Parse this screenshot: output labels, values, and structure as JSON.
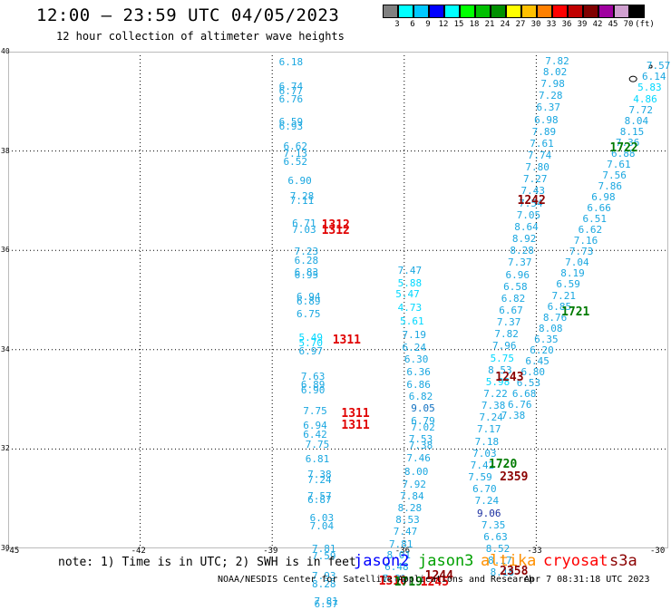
{
  "header": {
    "title": "12:00 – 23:59 UTC 04/05/2023",
    "subtitle": "12 hour collection of altimeter wave heights"
  },
  "colorbar": {
    "unit": "(ft)",
    "labels": [
      "3",
      "6",
      "9",
      "12",
      "15",
      "18",
      "21",
      "24",
      "27",
      "30",
      "33",
      "36",
      "39",
      "42",
      "45",
      "70"
    ],
    "colors": [
      "#808080",
      "#00ffff",
      "#00c8ff",
      "#0000ff",
      "#00ffff",
      "#00ff00",
      "#00c000",
      "#009000",
      "#ffff00",
      "#ffc000",
      "#ff8000",
      "#ff0000",
      "#c00000",
      "#800000",
      "#a000a0",
      "#d0a0d0",
      "#000000"
    ]
  },
  "axes": {
    "x_ticks": [
      "-45",
      "-42",
      "-39",
      "-36",
      "-33",
      "-30"
    ],
    "y_ticks": [
      "40",
      "38",
      "36",
      "34",
      "32",
      "30"
    ]
  },
  "chart_data": {
    "type": "scatter",
    "title": "12:00 – 23:59 UTC 04/05/2023",
    "subtitle": "12 hour collection of altimeter wave heights",
    "xlim": [
      -45,
      -30
    ],
    "ylim": [
      30,
      40
    ],
    "grid": true,
    "wave_heights": [
      {
        "lon": -38.6,
        "lat": 39.8,
        "v": "6.18",
        "c": "c1"
      },
      {
        "lon": -38.6,
        "lat": 39.3,
        "v": "6.74",
        "c": "c1"
      },
      {
        "lon": -38.6,
        "lat": 39.22,
        "v": "6.77",
        "c": "c1"
      },
      {
        "lon": -38.6,
        "lat": 39.05,
        "v": "6.76",
        "c": "c1"
      },
      {
        "lon": -38.6,
        "lat": 38.6,
        "v": "6.59",
        "c": "c1"
      },
      {
        "lon": -38.6,
        "lat": 38.5,
        "v": "6.93",
        "c": "c1"
      },
      {
        "lon": -38.5,
        "lat": 38.1,
        "v": "6.62",
        "c": "c1"
      },
      {
        "lon": -38.5,
        "lat": 37.95,
        "v": "7.13",
        "c": "c1"
      },
      {
        "lon": -38.5,
        "lat": 37.8,
        "v": "6.52",
        "c": "c1"
      },
      {
        "lon": -38.4,
        "lat": 37.4,
        "v": "6.90",
        "c": "c1"
      },
      {
        "lon": -38.35,
        "lat": 37.1,
        "v": "7.28",
        "c": "c1"
      },
      {
        "lon": -38.35,
        "lat": 37.0,
        "v": "7.11",
        "c": "c1"
      },
      {
        "lon": -38.3,
        "lat": 36.55,
        "v": "6.71",
        "c": "c1"
      },
      {
        "lon": -38.3,
        "lat": 36.42,
        "v": "7.03",
        "c": "c1"
      },
      {
        "lon": -38.25,
        "lat": 35.98,
        "v": "7.23",
        "c": "c1"
      },
      {
        "lon": -38.25,
        "lat": 35.8,
        "v": "6.28",
        "c": "c1"
      },
      {
        "lon": -38.25,
        "lat": 35.57,
        "v": "6.83",
        "c": "c1"
      },
      {
        "lon": -38.25,
        "lat": 35.52,
        "v": "6.95",
        "c": "c1"
      },
      {
        "lon": -38.2,
        "lat": 35.07,
        "v": "6.94",
        "c": "c1"
      },
      {
        "lon": -38.2,
        "lat": 34.98,
        "v": "6.89",
        "c": "c1"
      },
      {
        "lon": -38.2,
        "lat": 34.73,
        "v": "6.75",
        "c": "c1"
      },
      {
        "lon": -38.15,
        "lat": 34.25,
        "v": "5.49",
        "c": "c2"
      },
      {
        "lon": -38.15,
        "lat": 34.15,
        "v": "5.70",
        "c": "c2"
      },
      {
        "lon": -38.15,
        "lat": 33.98,
        "v": "6.97",
        "c": "c1"
      },
      {
        "lon": -38.1,
        "lat": 33.47,
        "v": "7.63",
        "c": "c1"
      },
      {
        "lon": -38.1,
        "lat": 33.3,
        "v": "6.89",
        "c": "c1"
      },
      {
        "lon": -38.1,
        "lat": 33.2,
        "v": "6.90",
        "c": "c1"
      },
      {
        "lon": -38.05,
        "lat": 32.78,
        "v": "7.75",
        "c": "c1"
      },
      {
        "lon": -38.05,
        "lat": 32.48,
        "v": "6.94",
        "c": "c1"
      },
      {
        "lon": -38.05,
        "lat": 32.3,
        "v": "6.42",
        "c": "c1"
      },
      {
        "lon": -38.0,
        "lat": 32.1,
        "v": "7.75",
        "c": "c1"
      },
      {
        "lon": -38.0,
        "lat": 31.8,
        "v": "6.81",
        "c": "c1"
      },
      {
        "lon": -37.95,
        "lat": 31.5,
        "v": "7.38",
        "c": "c1"
      },
      {
        "lon": -37.95,
        "lat": 31.38,
        "v": "7.24",
        "c": "c1"
      },
      {
        "lon": -37.95,
        "lat": 31.05,
        "v": "7.57",
        "c": "c1"
      },
      {
        "lon": -37.95,
        "lat": 30.98,
        "v": "6.87",
        "c": "c1"
      },
      {
        "lon": -37.9,
        "lat": 30.62,
        "v": "6.03",
        "c": "c1"
      },
      {
        "lon": -37.9,
        "lat": 30.45,
        "v": "7.04",
        "c": "c1"
      },
      {
        "lon": -37.85,
        "lat": 30.0,
        "v": "7.81",
        "c": "c1"
      },
      {
        "lon": -37.85,
        "lat": 29.85,
        "v": "7.59",
        "c": "c1"
      },
      {
        "lon": -37.85,
        "lat": 29.45,
        "v": "7.93",
        "c": "c1"
      },
      {
        "lon": -37.85,
        "lat": 29.28,
        "v": "8.28",
        "c": "c1"
      },
      {
        "lon": -37.8,
        "lat": 28.95,
        "v": "7.81",
        "c": "c1"
      },
      {
        "lon": -37.8,
        "lat": 28.88,
        "v": "6.57",
        "c": "c1"
      },
      {
        "lon": -35.9,
        "lat": 35.6,
        "v": "7.47",
        "c": "c1"
      },
      {
        "lon": -35.9,
        "lat": 35.35,
        "v": "5.88",
        "c": "c2"
      },
      {
        "lon": -35.95,
        "lat": 35.12,
        "v": "5.47",
        "c": "c2"
      },
      {
        "lon": -35.9,
        "lat": 34.85,
        "v": "4.73",
        "c": "c2"
      },
      {
        "lon": -35.85,
        "lat": 34.58,
        "v": "5.61",
        "c": "c2"
      },
      {
        "lon": -35.8,
        "lat": 34.3,
        "v": "7.19",
        "c": "c1"
      },
      {
        "lon": -35.8,
        "lat": 34.05,
        "v": "6.24",
        "c": "c1"
      },
      {
        "lon": -35.75,
        "lat": 33.82,
        "v": "6.30",
        "c": "c1"
      },
      {
        "lon": -35.7,
        "lat": 33.55,
        "v": "6.36",
        "c": "c1"
      },
      {
        "lon": -35.7,
        "lat": 33.3,
        "v": "6.86",
        "c": "c1"
      },
      {
        "lon": -35.65,
        "lat": 33.06,
        "v": "6.82",
        "c": "c1"
      },
      {
        "lon": -35.6,
        "lat": 32.82,
        "v": "9.05",
        "c": "c3"
      },
      {
        "lon": -35.6,
        "lat": 32.58,
        "v": "6.79",
        "c": "c1"
      },
      {
        "lon": -35.6,
        "lat": 32.44,
        "v": "7.02",
        "c": "c1"
      },
      {
        "lon": -35.65,
        "lat": 32.2,
        "v": "7.53",
        "c": "c1"
      },
      {
        "lon": -35.65,
        "lat": 32.08,
        "v": "7.38",
        "c": "c1"
      },
      {
        "lon": -35.7,
        "lat": 31.82,
        "v": "7.46",
        "c": "c1"
      },
      {
        "lon": -35.75,
        "lat": 31.55,
        "v": "8.00",
        "c": "c1"
      },
      {
        "lon": -35.8,
        "lat": 31.3,
        "v": "7.92",
        "c": "c1"
      },
      {
        "lon": -35.85,
        "lat": 31.06,
        "v": "7.84",
        "c": "c1"
      },
      {
        "lon": -35.9,
        "lat": 30.82,
        "v": "8.28",
        "c": "c1"
      },
      {
        "lon": -35.95,
        "lat": 30.58,
        "v": "8.53",
        "c": "c1"
      },
      {
        "lon": -36.0,
        "lat": 30.34,
        "v": "7.47",
        "c": "c1"
      },
      {
        "lon": -36.1,
        "lat": 30.1,
        "v": "7.81",
        "c": "c1"
      },
      {
        "lon": -36.15,
        "lat": 29.88,
        "v": "8.01",
        "c": "c1"
      },
      {
        "lon": -36.2,
        "lat": 29.64,
        "v": "6.48",
        "c": "c1"
      },
      {
        "lon": -36.25,
        "lat": 29.4,
        "v": "7.81",
        "c": "c1"
      },
      {
        "lon": -32.55,
        "lat": 39.82,
        "v": "7.82",
        "c": "c1"
      },
      {
        "lon": -32.6,
        "lat": 39.6,
        "v": "8.02",
        "c": "c1"
      },
      {
        "lon": -32.65,
        "lat": 39.36,
        "v": "7.98",
        "c": "c1"
      },
      {
        "lon": -32.7,
        "lat": 39.12,
        "v": "7.28",
        "c": "c1"
      },
      {
        "lon": -32.75,
        "lat": 38.88,
        "v": "6.37",
        "c": "c1"
      },
      {
        "lon": -32.8,
        "lat": 38.64,
        "v": "6.98",
        "c": "c1"
      },
      {
        "lon": -32.85,
        "lat": 38.4,
        "v": "7.89",
        "c": "c1"
      },
      {
        "lon": -32.9,
        "lat": 38.16,
        "v": "7.61",
        "c": "c1"
      },
      {
        "lon": -32.95,
        "lat": 37.92,
        "v": "7.74",
        "c": "c1"
      },
      {
        "lon": -33.0,
        "lat": 37.68,
        "v": "7.80",
        "c": "c1"
      },
      {
        "lon": -33.05,
        "lat": 37.44,
        "v": "7.27",
        "c": "c1"
      },
      {
        "lon": -33.1,
        "lat": 37.2,
        "v": "7.43",
        "c": "c1"
      },
      {
        "lon": -33.15,
        "lat": 36.96,
        "v": "7.54",
        "c": "c1"
      },
      {
        "lon": -33.2,
        "lat": 36.72,
        "v": "7.05",
        "c": "c1"
      },
      {
        "lon": -33.25,
        "lat": 36.48,
        "v": "8.64",
        "c": "c1"
      },
      {
        "lon": -33.3,
        "lat": 36.24,
        "v": "8.92",
        "c": "c1"
      },
      {
        "lon": -33.35,
        "lat": 36.0,
        "v": "8.28",
        "c": "c1"
      },
      {
        "lon": -33.4,
        "lat": 35.76,
        "v": "7.37",
        "c": "c1"
      },
      {
        "lon": -33.45,
        "lat": 35.52,
        "v": "6.96",
        "c": "c1"
      },
      {
        "lon": -33.5,
        "lat": 35.28,
        "v": "6.58",
        "c": "c1"
      },
      {
        "lon": -33.55,
        "lat": 35.04,
        "v": "6.82",
        "c": "c1"
      },
      {
        "lon": -33.6,
        "lat": 34.8,
        "v": "6.67",
        "c": "c1"
      },
      {
        "lon": -33.65,
        "lat": 34.56,
        "v": "7.37",
        "c": "c1"
      },
      {
        "lon": -33.7,
        "lat": 34.32,
        "v": "7.82",
        "c": "c1"
      },
      {
        "lon": -33.75,
        "lat": 34.08,
        "v": "7.96",
        "c": "c1"
      },
      {
        "lon": -33.8,
        "lat": 33.84,
        "v": "5.75",
        "c": "c2"
      },
      {
        "lon": -33.85,
        "lat": 33.6,
        "v": "8.53",
        "c": "c1"
      },
      {
        "lon": -33.9,
        "lat": 33.36,
        "v": "5.98",
        "c": "c2"
      },
      {
        "lon": -33.95,
        "lat": 33.12,
        "v": "7.22",
        "c": "c1"
      },
      {
        "lon": -34.0,
        "lat": 32.88,
        "v": "7.38",
        "c": "c1"
      },
      {
        "lon": -34.05,
        "lat": 32.64,
        "v": "7.24",
        "c": "c1"
      },
      {
        "lon": -34.1,
        "lat": 32.4,
        "v": "7.17",
        "c": "c1"
      },
      {
        "lon": -34.15,
        "lat": 32.16,
        "v": "7.18",
        "c": "c1"
      },
      {
        "lon": -34.2,
        "lat": 31.92,
        "v": "7.03",
        "c": "c1"
      },
      {
        "lon": -34.25,
        "lat": 31.68,
        "v": "7.42",
        "c": "c1"
      },
      {
        "lon": -34.3,
        "lat": 31.44,
        "v": "7.59",
        "c": "c1"
      },
      {
        "lon": -34.2,
        "lat": 31.2,
        "v": "6.70",
        "c": "c1"
      },
      {
        "lon": -34.15,
        "lat": 30.96,
        "v": "7.24",
        "c": "c1"
      },
      {
        "lon": -34.1,
        "lat": 30.72,
        "v": "9.06",
        "c": "dk"
      },
      {
        "lon": -34.0,
        "lat": 30.48,
        "v": "7.35",
        "c": "c1"
      },
      {
        "lon": -33.95,
        "lat": 30.24,
        "v": "6.63",
        "c": "c1"
      },
      {
        "lon": -33.9,
        "lat": 30.0,
        "v": "8.52",
        "c": "c1"
      },
      {
        "lon": -33.85,
        "lat": 29.76,
        "v": "8.17",
        "c": "c1"
      },
      {
        "lon": -33.8,
        "lat": 29.52,
        "v": "8.18",
        "c": "c1"
      },
      {
        "lon": -30.25,
        "lat": 39.72,
        "v": "7.57",
        "c": "c1"
      },
      {
        "lon": -30.35,
        "lat": 39.5,
        "v": "6.14",
        "c": "c1"
      },
      {
        "lon": -30.45,
        "lat": 39.28,
        "v": "5.83",
        "c": "c2"
      },
      {
        "lon": -30.55,
        "lat": 39.06,
        "v": "4.86",
        "c": "c2"
      },
      {
        "lon": -30.65,
        "lat": 38.84,
        "v": "7.72",
        "c": "c1"
      },
      {
        "lon": -30.75,
        "lat": 38.62,
        "v": "8.04",
        "c": "c1"
      },
      {
        "lon": -30.85,
        "lat": 38.4,
        "v": "8.15",
        "c": "c1"
      },
      {
        "lon": -30.95,
        "lat": 38.18,
        "v": "7.36",
        "c": "c1"
      },
      {
        "lon": -31.05,
        "lat": 37.96,
        "v": "6.88",
        "c": "c1"
      },
      {
        "lon": -31.15,
        "lat": 37.74,
        "v": "7.61",
        "c": "c1"
      },
      {
        "lon": -31.25,
        "lat": 37.52,
        "v": "7.56",
        "c": "c1"
      },
      {
        "lon": -31.35,
        "lat": 37.3,
        "v": "7.86",
        "c": "c1"
      },
      {
        "lon": -31.5,
        "lat": 37.08,
        "v": "6.98",
        "c": "c1"
      },
      {
        "lon": -31.6,
        "lat": 36.86,
        "v": "6.66",
        "c": "c1"
      },
      {
        "lon": -31.7,
        "lat": 36.64,
        "v": "6.51",
        "c": "c1"
      },
      {
        "lon": -31.8,
        "lat": 36.42,
        "v": "6.62",
        "c": "c1"
      },
      {
        "lon": -31.9,
        "lat": 36.2,
        "v": "7.16",
        "c": "c1"
      },
      {
        "lon": -32.0,
        "lat": 35.98,
        "v": "7.73",
        "c": "c1"
      },
      {
        "lon": -32.1,
        "lat": 35.76,
        "v": "7.04",
        "c": "c1"
      },
      {
        "lon": -32.2,
        "lat": 35.54,
        "v": "8.19",
        "c": "c1"
      },
      {
        "lon": -32.3,
        "lat": 35.32,
        "v": "6.59",
        "c": "c1"
      },
      {
        "lon": -32.4,
        "lat": 35.1,
        "v": "7.21",
        "c": "c1"
      },
      {
        "lon": -32.5,
        "lat": 34.88,
        "v": "6.85",
        "c": "c1"
      },
      {
        "lon": -32.6,
        "lat": 34.66,
        "v": "8.76",
        "c": "c1"
      },
      {
        "lon": -32.7,
        "lat": 34.44,
        "v": "8.08",
        "c": "c1"
      },
      {
        "lon": -32.8,
        "lat": 34.22,
        "v": "6.35",
        "c": "c1"
      },
      {
        "lon": -32.9,
        "lat": 34.0,
        "v": "6.20",
        "c": "c1"
      },
      {
        "lon": -33.0,
        "lat": 33.78,
        "v": "6.45",
        "c": "c1"
      },
      {
        "lon": -33.1,
        "lat": 33.56,
        "v": "6.80",
        "c": "c1"
      },
      {
        "lon": -33.2,
        "lat": 33.34,
        "v": "6.53",
        "c": "c1"
      },
      {
        "lon": -33.3,
        "lat": 33.12,
        "v": "6.68",
        "c": "c1"
      },
      {
        "lon": -33.4,
        "lat": 32.9,
        "v": "6.76",
        "c": "c1"
      },
      {
        "lon": -33.55,
        "lat": 32.68,
        "v": "7.38",
        "c": "c1"
      }
    ],
    "pass_times": [
      {
        "lon": -37.55,
        "lat": 36.52,
        "v": "1312",
        "color": "#e00000"
      },
      {
        "lon": -37.55,
        "lat": 36.4,
        "v": "1312",
        "color": "#e00000"
      },
      {
        "lon": -37.3,
        "lat": 34.2,
        "v": "1311",
        "color": "#e00000"
      },
      {
        "lon": -37.1,
        "lat": 32.72,
        "v": "1311",
        "color": "#e00000"
      },
      {
        "lon": -37.1,
        "lat": 32.48,
        "v": "1311",
        "color": "#e00000"
      },
      {
        "lon": -33.1,
        "lat": 37.0,
        "v": "1242",
        "color": "#8b0000"
      },
      {
        "lon": -31.0,
        "lat": 38.06,
        "v": "1722",
        "color": "#007a00"
      },
      {
        "lon": -32.1,
        "lat": 34.77,
        "v": "1721",
        "color": "#007a00"
      },
      {
        "lon": -33.6,
        "lat": 33.45,
        "v": "1243",
        "color": "#8b0000"
      },
      {
        "lon": -33.75,
        "lat": 31.7,
        "v": "1720",
        "color": "#007a00"
      },
      {
        "lon": -33.5,
        "lat": 31.45,
        "v": "2359",
        "color": "#8b0000"
      },
      {
        "lon": -33.5,
        "lat": 29.55,
        "v": "2358",
        "color": "#8b0000"
      },
      {
        "lon": -35.2,
        "lat": 29.45,
        "v": "1244",
        "color": "#8b0000"
      },
      {
        "lon": -35.3,
        "lat": 29.32,
        "v": "1245",
        "color": "#e00000"
      },
      {
        "lon": -36.25,
        "lat": 29.35,
        "v": "1310",
        "color": "#e00000"
      },
      {
        "lon": -35.9,
        "lat": 29.33,
        "v": "1719",
        "color": "#007a00"
      }
    ]
  },
  "footer": {
    "note": "note: 1) Time is in UTC; 2) SWH is in feet",
    "legend": [
      {
        "label": "jason2",
        "color": "#0000ff"
      },
      {
        "label": "jason3",
        "color": "#00a000"
      },
      {
        "label": "altika",
        "color": "#ff9000"
      },
      {
        "label": "cryosat",
        "color": "#ff0000"
      },
      {
        "label": "s3a",
        "color": "#8b0000"
      }
    ],
    "credit": "NOAA/NESDIS Center for Satellite Applications and Research",
    "timestamp": "Apr  7 08:31:18 UTC 2023"
  }
}
